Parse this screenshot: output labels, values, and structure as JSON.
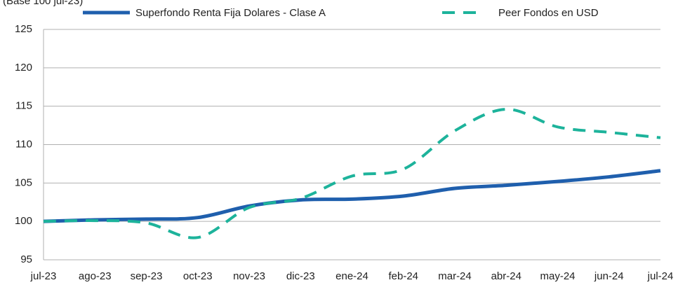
{
  "chart_data": {
    "type": "line",
    "subtitle": "(Base 100 jul-23)",
    "categories": [
      "jul-23",
      "ago-23",
      "sep-23",
      "oct-23",
      "nov-23",
      "dic-23",
      "ene-24",
      "feb-24",
      "mar-24",
      "abr-24",
      "may-24",
      "jun-24",
      "jul-24"
    ],
    "series": [
      {
        "name": "Superfondo Renta Fija Dolares - Clase A",
        "color": "#1f5fad",
        "dashed": false,
        "values": [
          100,
          100.2,
          100.3,
          100.5,
          102.0,
          102.8,
          102.9,
          103.3,
          104.3,
          104.7,
          105.2,
          105.8,
          106.6
        ]
      },
      {
        "name": "Peer Fondos en USD",
        "color": "#1db39b",
        "dashed": true,
        "values": [
          100,
          100.1,
          99.8,
          97.9,
          101.8,
          103.0,
          105.9,
          106.8,
          111.8,
          114.6,
          112.3,
          111.6,
          110.9
        ]
      }
    ],
    "ylim": [
      95,
      125
    ],
    "yticks": [
      95,
      100,
      105,
      110,
      115,
      120,
      125
    ],
    "grid": true
  }
}
